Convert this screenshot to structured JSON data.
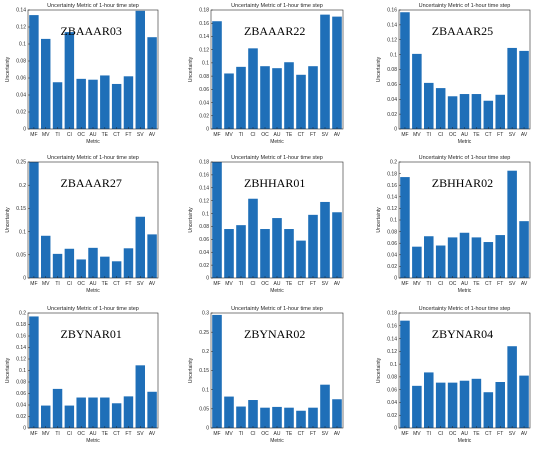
{
  "style": {
    "bar_color": "#1f6fb8",
    "axis_color": "#262626",
    "grid": false
  },
  "chart_data": [
    {
      "type": "bar",
      "title": "Uncertainty Metric of 1-hour time step",
      "label": "ZBAAAR03",
      "xlabel": "Metric",
      "ylabel": "Uncertainty",
      "categories": [
        "MF",
        "MV",
        "TI",
        "CI",
        "OC",
        "AU",
        "TE",
        "CT",
        "FT",
        "SV",
        "AV"
      ],
      "values": [
        0.134,
        0.106,
        0.055,
        0.114,
        0.059,
        0.058,
        0.063,
        0.053,
        0.062,
        0.139,
        0.108
      ],
      "ylim": [
        0,
        0.14
      ],
      "yticks": [
        "0",
        "0.02",
        "0.04",
        "0.06",
        "0.08",
        "0.1",
        "0.12",
        "0.14"
      ]
    },
    {
      "type": "bar",
      "title": "Uncertainty Metric of 1-hour time step",
      "label": "ZBAAAR22",
      "xlabel": "Metric",
      "ylabel": "Uncertainty",
      "categories": [
        "MF",
        "MV",
        "TI",
        "CI",
        "OC",
        "AU",
        "TE",
        "CT",
        "FT",
        "SV",
        "AV"
      ],
      "values": [
        0.163,
        0.084,
        0.094,
        0.122,
        0.095,
        0.092,
        0.101,
        0.082,
        0.095,
        0.173,
        0.17
      ],
      "ylim": [
        0,
        0.18
      ],
      "yticks": [
        "0",
        "0.02",
        "0.04",
        "0.06",
        "0.08",
        "0.1",
        "0.12",
        "0.14",
        "0.16",
        "0.18"
      ]
    },
    {
      "type": "bar",
      "title": "Uncertainty Metric of 1-hour time step",
      "label": "ZBAAAR25",
      "xlabel": "Metric",
      "ylabel": "Uncertainty",
      "categories": [
        "MF",
        "MV",
        "TI",
        "CI",
        "OC",
        "AU",
        "TE",
        "CT",
        "FT",
        "SV",
        "AV"
      ],
      "values": [
        0.157,
        0.101,
        0.062,
        0.055,
        0.044,
        0.047,
        0.047,
        0.038,
        0.046,
        0.109,
        0.105
      ],
      "ylim": [
        0,
        0.16
      ],
      "yticks": [
        "0",
        "0.02",
        "0.04",
        "0.06",
        "0.08",
        "0.1",
        "0.12",
        "0.14",
        "0.16"
      ]
    },
    {
      "type": "bar",
      "title": "Uncertainty Metric of 1-hour time step",
      "label": "ZBAAAR27",
      "xlabel": "Metric",
      "ylabel": "Uncertainty",
      "categories": [
        "MF",
        "MV",
        "TI",
        "CI",
        "OC",
        "AU",
        "TE",
        "CT",
        "FT",
        "SV",
        "AV"
      ],
      "values": [
        0.255,
        0.091,
        0.052,
        0.063,
        0.04,
        0.065,
        0.046,
        0.036,
        0.064,
        0.132,
        0.094
      ],
      "ylim": [
        0,
        0.25
      ],
      "yticks": [
        "0",
        "0.05",
        "0.1",
        "0.15",
        "0.2",
        "0.25"
      ]
    },
    {
      "type": "bar",
      "title": "Uncertainty Metric of 1-hour time step",
      "label": "ZBHHAR01",
      "xlabel": "Metric",
      "ylabel": "Uncertainty",
      "categories": [
        "MF",
        "MV",
        "TI",
        "CI",
        "OC",
        "AU",
        "TE",
        "CT",
        "FT",
        "SV",
        "AV"
      ],
      "values": [
        0.18,
        0.076,
        0.082,
        0.123,
        0.076,
        0.093,
        0.076,
        0.058,
        0.098,
        0.118,
        0.102
      ],
      "ylim": [
        0,
        0.18
      ],
      "yticks": [
        "0",
        "0.02",
        "0.04",
        "0.06",
        "0.08",
        "0.1",
        "0.12",
        "0.14",
        "0.16",
        "0.18"
      ]
    },
    {
      "type": "bar",
      "title": "Uncertainty Metric of 1-hour time step",
      "label": "ZBHHAR02",
      "xlabel": "Metric",
      "ylabel": "Uncertainty",
      "categories": [
        "MF",
        "MV",
        "TI",
        "CI",
        "OC",
        "AU",
        "TE",
        "CT",
        "FT",
        "SV",
        "AV"
      ],
      "values": [
        0.174,
        0.054,
        0.072,
        0.056,
        0.07,
        0.078,
        0.07,
        0.062,
        0.074,
        0.185,
        0.098
      ],
      "ylim": [
        0,
        0.2
      ],
      "yticks": [
        "0",
        "0.02",
        "0.04",
        "0.06",
        "0.08",
        "0.1",
        "0.12",
        "0.14",
        "0.16",
        "0.18",
        "0.2"
      ]
    },
    {
      "type": "bar",
      "title": "Uncertainty Metric of 1-hour time step",
      "label": "ZBYNAR01",
      "xlabel": "Metric",
      "ylabel": "Uncertainty",
      "categories": [
        "MF",
        "MV",
        "TI",
        "CI",
        "OC",
        "AU",
        "TE",
        "CT",
        "FT",
        "SV",
        "AV"
      ],
      "values": [
        0.194,
        0.039,
        0.068,
        0.039,
        0.053,
        0.053,
        0.053,
        0.043,
        0.055,
        0.109,
        0.063
      ],
      "ylim": [
        0,
        0.2
      ],
      "yticks": [
        "0",
        "0.02",
        "0.04",
        "0.06",
        "0.08",
        "0.1",
        "0.12",
        "0.14",
        "0.16",
        "0.18",
        "0.2"
      ]
    },
    {
      "type": "bar",
      "title": "Uncertainty Metric of 1-hour time step",
      "label": "ZBYNAR02",
      "xlabel": "Metric",
      "ylabel": "Uncertainty",
      "categories": [
        "MF",
        "MV",
        "TI",
        "CI",
        "OC",
        "AU",
        "TE",
        "CT",
        "FT",
        "SV",
        "AV"
      ],
      "values": [
        0.295,
        0.082,
        0.056,
        0.073,
        0.053,
        0.055,
        0.053,
        0.045,
        0.053,
        0.113,
        0.075
      ],
      "ylim": [
        0,
        0.3
      ],
      "yticks": [
        "0",
        "0.05",
        "0.1",
        "0.15",
        "0.2",
        "0.25",
        "0.3"
      ]
    },
    {
      "type": "bar",
      "title": "Uncertainty Metric of 1-hour time step",
      "label": "ZBYNAR04",
      "xlabel": "Metric",
      "ylabel": "Uncertainty",
      "categories": [
        "MF",
        "MV",
        "TI",
        "CI",
        "OC",
        "AU",
        "TE",
        "CT",
        "FT",
        "SV",
        "AV"
      ],
      "values": [
        0.168,
        0.066,
        0.087,
        0.071,
        0.071,
        0.074,
        0.077,
        0.056,
        0.072,
        0.128,
        0.082
      ],
      "ylim": [
        0,
        0.18
      ],
      "yticks": [
        "0",
        "0.02",
        "0.04",
        "0.06",
        "0.08",
        "0.1",
        "0.12",
        "0.14",
        "0.16",
        "0.18"
      ]
    }
  ]
}
